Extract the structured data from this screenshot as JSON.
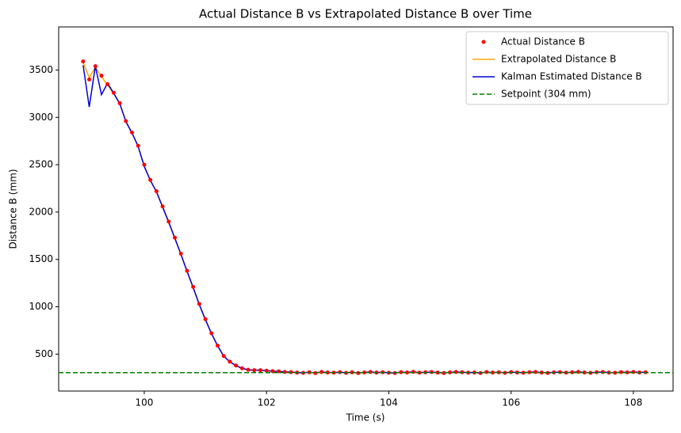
{
  "chart_data": {
    "type": "line",
    "title": "Actual Distance B vs Extrapolated Distance B over Time",
    "x_label": "Time (s)",
    "y_label": "Distance B (mm)",
    "xlim": [
      98.6,
      108.65
    ],
    "ylim": [
      110,
      3955
    ],
    "xticks": [
      100,
      102,
      104,
      106,
      108
    ],
    "yticks": [
      500,
      1000,
      1500,
      2000,
      2500,
      3000,
      3500
    ],
    "legend": "upper right",
    "x": [
      99.0,
      99.1,
      99.2,
      99.3,
      99.4,
      99.5,
      99.6,
      99.7,
      99.8,
      99.9,
      100.0,
      100.1,
      100.2,
      100.3,
      100.4,
      100.5,
      100.6,
      100.7,
      100.8,
      100.9,
      101.0,
      101.1,
      101.2,
      101.3,
      101.4,
      101.5,
      101.6,
      101.7,
      101.8,
      101.9,
      102.0,
      102.1,
      102.2,
      102.3,
      102.4,
      102.5,
      102.6,
      102.7,
      102.8,
      102.9,
      103.0,
      103.1,
      103.2,
      103.3,
      103.4,
      103.5,
      103.6,
      103.7,
      103.8,
      103.9,
      104.0,
      104.1,
      104.2,
      104.3,
      104.4,
      104.5,
      104.6,
      104.7,
      104.8,
      104.9,
      105.0,
      105.1,
      105.2,
      105.3,
      105.4,
      105.5,
      105.6,
      105.7,
      105.8,
      105.9,
      106.0,
      106.1,
      106.2,
      106.3,
      106.4,
      106.5,
      106.6,
      106.7,
      106.8,
      106.9,
      107.0,
      107.1,
      107.2,
      107.3,
      107.4,
      107.5,
      107.6,
      107.7,
      107.8,
      107.9,
      108.0,
      108.1,
      108.2
    ],
    "series": [
      {
        "name": "Actual Distance B",
        "kind": "scatter",
        "color": "red",
        "values": [
          3590,
          3400,
          3540,
          3440,
          3350,
          3260,
          3150,
          2960,
          2840,
          2700,
          2500,
          2340,
          2220,
          2060,
          1900,
          1730,
          1560,
          1380,
          1210,
          1030,
          870,
          720,
          590,
          480,
          420,
          380,
          350,
          335,
          330,
          330,
          325,
          320,
          318,
          312,
          310,
          305,
          302,
          308,
          300,
          312,
          306,
          304,
          310,
          302,
          308,
          300,
          306,
          312,
          305,
          309,
          303,
          300,
          310,
          306,
          313,
          304,
          308,
          311,
          305,
          300,
          307,
          312,
          309,
          304,
          306,
          300,
          311,
          305,
          308,
          302,
          310,
          306,
          303,
          309,
          312,
          305,
          301,
          307,
          310,
          304,
          308,
          313,
          306,
          302,
          309,
          311,
          305,
          303,
          310,
          307,
          312,
          306,
          309
        ]
      },
      {
        "name": "Extrapolated Distance B",
        "kind": "line",
        "color": "orange",
        "values": [
          3580,
          3420,
          3530,
          3430,
          3340,
          3250,
          3140,
          2950,
          2830,
          2690,
          2490,
          2330,
          2210,
          2050,
          1890,
          1720,
          1550,
          1370,
          1200,
          1020,
          860,
          715,
          585,
          478,
          418,
          378,
          349,
          334,
          330,
          329,
          324,
          319,
          317,
          311,
          309,
          305,
          303,
          307,
          301,
          311,
          305,
          304,
          309,
          303,
          307,
          301,
          306,
          311,
          305,
          308,
          303,
          301,
          309,
          306,
          312,
          304,
          307,
          310,
          305,
          301,
          307,
          311,
          308,
          304,
          305,
          301,
          310,
          305,
          307,
          303,
          309,
          306,
          304,
          308,
          311,
          305,
          302,
          307,
          309,
          304,
          307,
          312,
          306,
          303,
          308,
          310,
          305,
          304,
          309,
          307,
          311,
          306,
          308
        ]
      },
      {
        "name": "Kalman Estimated Distance B",
        "kind": "line",
        "color": "#0000dd",
        "values": [
          3550,
          3110,
          3540,
          3240,
          3360,
          3255,
          3145,
          2955,
          2835,
          2695,
          2480,
          2335,
          2215,
          2055,
          1895,
          1725,
          1555,
          1375,
          1205,
          1025,
          865,
          718,
          588,
          479,
          419,
          379,
          350,
          335,
          330,
          330,
          325,
          320,
          318,
          312,
          310,
          305,
          302,
          308,
          300,
          312,
          306,
          304,
          310,
          302,
          308,
          300,
          306,
          312,
          305,
          309,
          303,
          300,
          310,
          306,
          313,
          304,
          308,
          311,
          305,
          300,
          307,
          312,
          309,
          304,
          306,
          300,
          311,
          305,
          308,
          302,
          310,
          306,
          303,
          309,
          312,
          305,
          301,
          307,
          310,
          304,
          308,
          313,
          306,
          302,
          309,
          311,
          305,
          303,
          310,
          307,
          312,
          306,
          309
        ]
      }
    ],
    "setpoint": {
      "name": "Setpoint (304 mm)",
      "value": 304,
      "color": "green"
    }
  }
}
